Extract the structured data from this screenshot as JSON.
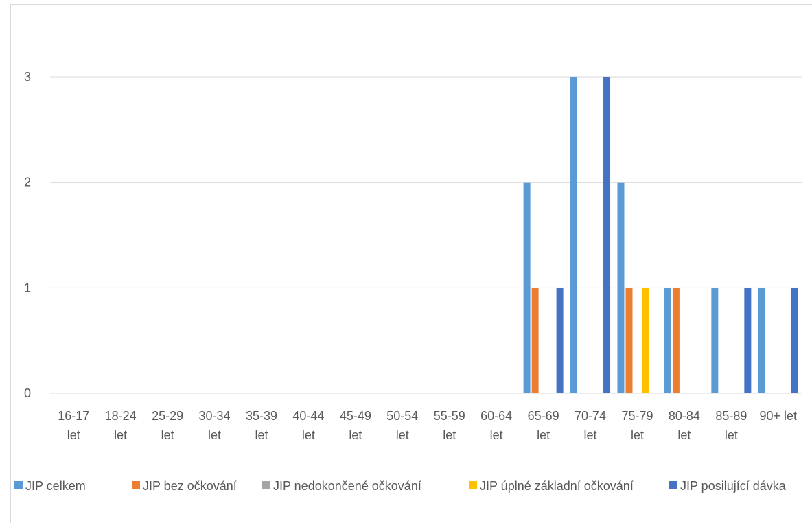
{
  "chart_data": {
    "type": "bar",
    "categories": [
      [
        "16-17",
        "let"
      ],
      [
        "18-24",
        "let"
      ],
      [
        "25-29",
        "let"
      ],
      [
        "30-34",
        "let"
      ],
      [
        "35-39",
        "let"
      ],
      [
        "40-44",
        "let"
      ],
      [
        "45-49",
        "let"
      ],
      [
        "50-54",
        "let"
      ],
      [
        "55-59",
        "let"
      ],
      [
        "60-64",
        "let"
      ],
      [
        "65-69",
        "let"
      ],
      [
        "70-74",
        "let"
      ],
      [
        "75-79",
        "let"
      ],
      [
        "80-84",
        "let"
      ],
      [
        "85-89",
        "let"
      ],
      [
        "90+ let",
        ""
      ]
    ],
    "series": [
      {
        "name": "JIP celkem",
        "color": "#5b9bd5",
        "values": [
          0,
          0,
          0,
          0,
          0,
          0,
          0,
          0,
          0,
          0,
          2,
          3,
          2,
          1,
          1,
          1
        ]
      },
      {
        "name": "JIP bez očkování",
        "color": "#ed7d31",
        "values": [
          0,
          0,
          0,
          0,
          0,
          0,
          0,
          0,
          0,
          0,
          1,
          0,
          1,
          1,
          0,
          0
        ]
      },
      {
        "name": "JIP nedokončené očkování",
        "color": "#a5a5a5",
        "values": [
          0,
          0,
          0,
          0,
          0,
          0,
          0,
          0,
          0,
          0,
          0,
          0,
          0,
          0,
          0,
          0
        ]
      },
      {
        "name": "JIP úplné základní očkování",
        "color": "#ffc000",
        "values": [
          0,
          0,
          0,
          0,
          0,
          0,
          0,
          0,
          0,
          0,
          0,
          0,
          1,
          0,
          0,
          0
        ]
      },
      {
        "name": "JIP posilující dávka",
        "color": "#4472c4",
        "values": [
          0,
          0,
          0,
          0,
          0,
          0,
          0,
          0,
          0,
          0,
          1,
          3,
          0,
          0,
          1,
          1
        ]
      }
    ],
    "y_ticks": [
      "0",
      "1",
      "2",
      "3"
    ],
    "ylim": [
      0,
      3
    ],
    "grid": true,
    "legend_position": "bottom"
  }
}
